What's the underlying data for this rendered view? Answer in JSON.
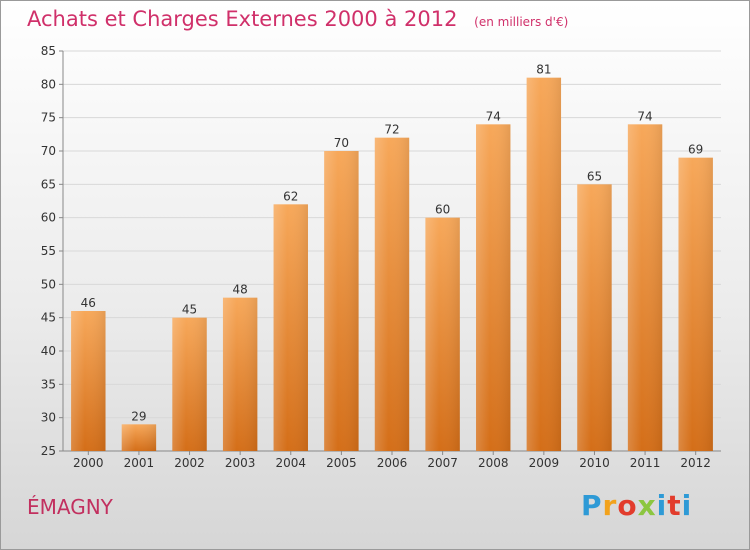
{
  "header": {
    "title": "Achats et Charges Externes 2000 à 2012",
    "subtitle": "(en milliers d'€)"
  },
  "footer": {
    "place": "ÉMAGNY",
    "logo": {
      "letters": [
        "P",
        "r",
        "o",
        "x",
        "i",
        "t",
        "i"
      ],
      "colors": [
        "#2e9ad6",
        "#f2a21c",
        "#e23c2c",
        "#8cc640",
        "#2e9ad6",
        "#e23c2c",
        "#2e9ad6"
      ]
    }
  },
  "chart_data": {
    "type": "bar",
    "title": "Achats et Charges Externes 2000 à 2012",
    "subtitle": "(en milliers d'€)",
    "categories": [
      "2000",
      "2001",
      "2002",
      "2003",
      "2004",
      "2005",
      "2006",
      "2007",
      "2008",
      "2009",
      "2010",
      "2011",
      "2012"
    ],
    "values": [
      46,
      29,
      45,
      48,
      62,
      70,
      72,
      60,
      74,
      81,
      65,
      74,
      69
    ],
    "data_labels": [
      "46",
      "29",
      "45",
      "48",
      "62",
      "70",
      "72",
      "60",
      "74",
      "81",
      "65",
      "74",
      "69"
    ],
    "ylim": [
      25,
      85
    ],
    "yticks": [
      25,
      30,
      35,
      40,
      45,
      50,
      55,
      60,
      65,
      70,
      75,
      80,
      85
    ],
    "xlabel": "",
    "ylabel": "",
    "grid": true,
    "colors": {
      "bar_top": "#f7a85a",
      "bar_bottom": "#d46e18",
      "grid": "#d8d8d8"
    }
  }
}
